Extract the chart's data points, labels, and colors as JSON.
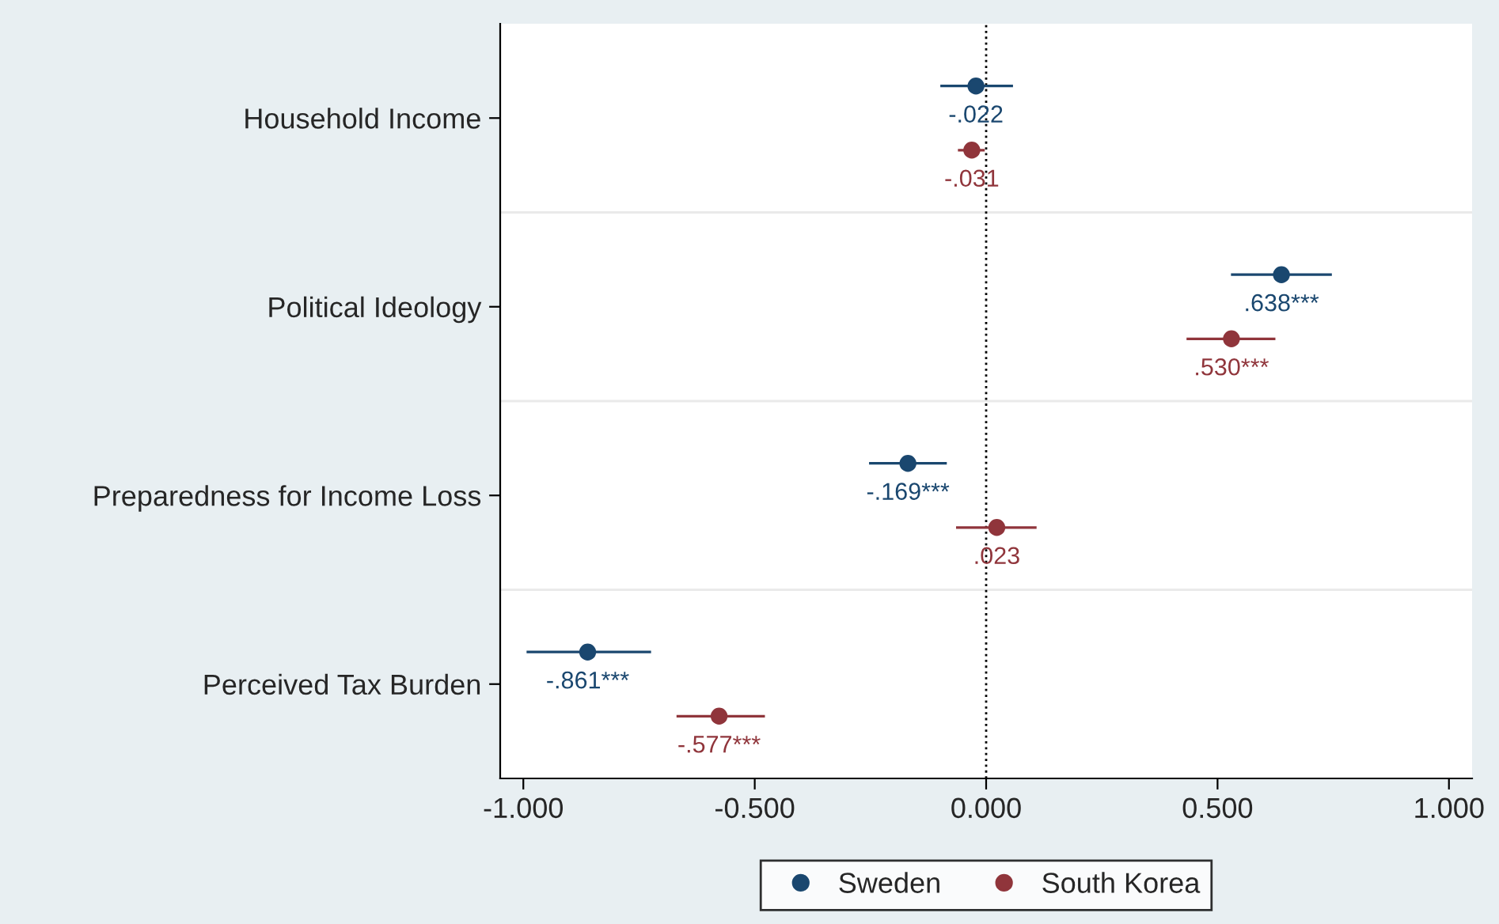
{
  "chart_data": {
    "type": "scatter",
    "orientation": "horizontal",
    "categories": [
      "Household Income",
      "Political Ideology",
      "Preparedness for Income Loss",
      "Perceived Tax Burden"
    ],
    "series": [
      {
        "name": "Sweden",
        "color": "#1a476f",
        "values": [
          -0.022,
          0.638,
          -0.169,
          -0.861
        ],
        "errors": [
          [
            -0.099,
            0.058
          ],
          [
            0.529,
            0.747
          ],
          [
            -0.253,
            -0.085
          ],
          [
            -0.993,
            -0.724
          ]
        ],
        "value_labels": [
          "-.022",
          ".638***",
          "-.169***",
          "-.861***"
        ]
      },
      {
        "name": "South Korea",
        "color": "#90353b",
        "values": [
          -0.031,
          0.53,
          0.023,
          -0.577
        ],
        "errors": [
          [
            -0.061,
            -0.003
          ],
          [
            0.433,
            0.625
          ],
          [
            -0.065,
            0.109
          ],
          [
            -0.669,
            -0.478
          ]
        ],
        "value_labels": [
          "-.031",
          ".530***",
          ".023",
          "-.577***"
        ]
      }
    ],
    "xlim": [
      -1.05,
      1.05
    ],
    "xticks": [
      {
        "value": -1,
        "label": "-1.000"
      },
      {
        "value": -0.5,
        "label": "-0.500"
      },
      {
        "value": 0,
        "label": "0.000"
      },
      {
        "value": 0.5,
        "label": "0.500"
      },
      {
        "value": 1,
        "label": "1.000"
      }
    ],
    "ref_lines": [
      {
        "axis": "x",
        "value": 0,
        "label": null,
        "color": "#000000",
        "line_style": "dotted"
      }
    ],
    "grid": "y",
    "legend": "bottom",
    "marker": "circle"
  }
}
